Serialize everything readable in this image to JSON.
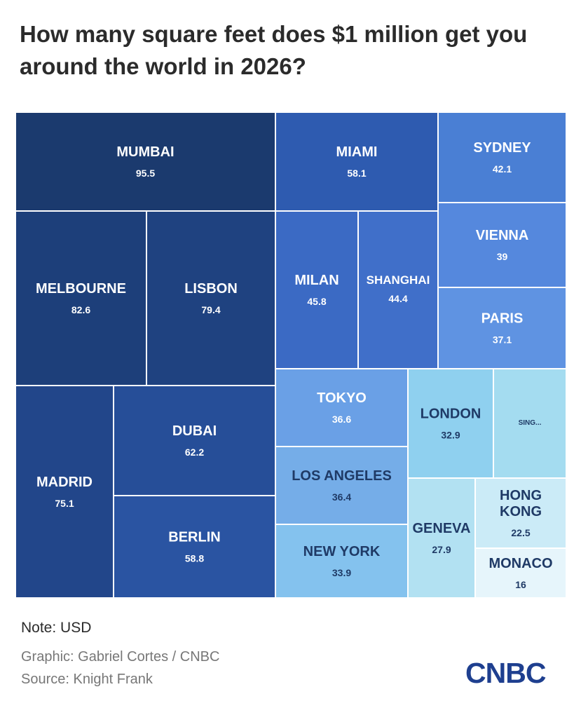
{
  "chart_data": {
    "type": "treemap",
    "title": "How many square feet does $1 million get you around the world in 2026?",
    "unit": "square feet",
    "items": [
      {
        "name": "MUMBAI",
        "value": 95.5,
        "label": "95.5",
        "color": "#1b3a6e"
      },
      {
        "name": "MELBOURNE",
        "value": 82.6,
        "label": "82.6",
        "color": "#1d3f7a"
      },
      {
        "name": "LISBON",
        "value": 79.4,
        "label": "79.4",
        "color": "#1f4280"
      },
      {
        "name": "MADRID",
        "value": 75.1,
        "label": "75.1",
        "color": "#22468a"
      },
      {
        "name": "DUBAI",
        "value": 62.2,
        "label": "62.2",
        "color": "#264e98"
      },
      {
        "name": "BERLIN",
        "value": 58.8,
        "label": "58.8",
        "color": "#2a54a2"
      },
      {
        "name": "MIAMI",
        "value": 58.1,
        "label": "58.1",
        "color": "#2e5bb0"
      },
      {
        "name": "MILAN",
        "value": 45.8,
        "label": "45.8",
        "color": "#3b6ac4"
      },
      {
        "name": "SHANGHAI",
        "value": 44.4,
        "label": "44.4",
        "color": "#406fc9"
      },
      {
        "name": "SYDNEY",
        "value": 42.1,
        "label": "42.1",
        "color": "#4a7fd4"
      },
      {
        "name": "VIENNA",
        "value": 39,
        "label": "39",
        "color": "#5588dd"
      },
      {
        "name": "PARIS",
        "value": 37.1,
        "label": "37.1",
        "color": "#5f93e2"
      },
      {
        "name": "TOKYO",
        "value": 36.6,
        "label": "36.6",
        "color": "#6aa0e6"
      },
      {
        "name": "LOS ANGELES",
        "value": 36.4,
        "label": "36.4",
        "color": "#75ade8"
      },
      {
        "name": "NEW YORK",
        "value": 33.9,
        "label": "33.9",
        "color": "#84c2ee"
      },
      {
        "name": "LONDON",
        "value": 32.9,
        "label": "32.9",
        "color": "#8fd0ef"
      },
      {
        "name": "SING...",
        "value": 30.5,
        "label": "",
        "color": "#a4dcf0"
      },
      {
        "name": "GENEVA",
        "value": 27.9,
        "label": "27.9",
        "color": "#b2e1f2"
      },
      {
        "name": "HONG KONG",
        "value": 22.5,
        "label": "22.5",
        "color": "#cbebf7"
      },
      {
        "name": "MONACO",
        "value": 16,
        "label": "16",
        "color": "#e6f5fb"
      }
    ]
  },
  "footer": {
    "note": "Note: USD",
    "graphic": "Graphic: Gabriel Cortes / CNBC",
    "source": "Source: Knight Frank",
    "logo": "CNBC"
  },
  "colors": {
    "title": "#2b2b2b",
    "credit": "#777777",
    "logo": "#1e3f8f",
    "label_light": "#ffffff",
    "label_dark": "#1f3a66"
  }
}
